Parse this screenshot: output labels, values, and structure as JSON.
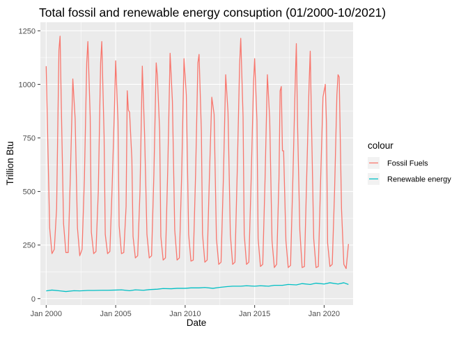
{
  "chart_data": {
    "type": "line",
    "title": "Total fossil and renewable energy consuption (01/2000-10/2021)",
    "xlabel": "Date",
    "ylabel": "Trillion Btu",
    "x_axis": {
      "type": "date",
      "range": [
        "1999-08-01",
        "2022-02-01"
      ],
      "tick_labels": [
        "Jan 2000",
        "Jan 2005",
        "Jan 2010",
        "Jan 2015",
        "Jan 2020"
      ],
      "tick_values": [
        2000,
        2005,
        2010,
        2015,
        2020
      ]
    },
    "y_axis": {
      "range": [
        -30,
        1290
      ],
      "tick_labels": [
        "0",
        "250",
        "500",
        "750",
        "1000",
        "1250"
      ],
      "tick_values": [
        0,
        250,
        500,
        750,
        1000,
        1250
      ]
    },
    "grid": true,
    "legend": {
      "title": "colour",
      "position": "right"
    },
    "series": [
      {
        "name": "Fossil Fuels",
        "color": "#F8766D",
        "points": [
          [
            "2000-01",
            1085
          ],
          [
            "2000-04",
            330
          ],
          [
            "2000-06",
            210
          ],
          [
            "2000-08",
            230
          ],
          [
            "2000-10",
            420
          ],
          [
            "2000-12",
            1160
          ],
          [
            "2001-01",
            1225
          ],
          [
            "2001-02",
            920
          ],
          [
            "2001-04",
            350
          ],
          [
            "2001-06",
            215
          ],
          [
            "2001-08",
            215
          ],
          [
            "2001-10",
            600
          ],
          [
            "2001-12",
            1025
          ],
          [
            "2002-02",
            840
          ],
          [
            "2002-04",
            330
          ],
          [
            "2002-06",
            200
          ],
          [
            "2002-08",
            230
          ],
          [
            "2002-10",
            560
          ],
          [
            "2002-12",
            1100
          ],
          [
            "2003-01",
            1200
          ],
          [
            "2003-03",
            850
          ],
          [
            "2003-04",
            310
          ],
          [
            "2003-06",
            210
          ],
          [
            "2003-08",
            220
          ],
          [
            "2003-10",
            500
          ],
          [
            "2003-12",
            1100
          ],
          [
            "2004-01",
            1200
          ],
          [
            "2004-03",
            760
          ],
          [
            "2004-04",
            300
          ],
          [
            "2004-06",
            210
          ],
          [
            "2004-08",
            220
          ],
          [
            "2004-10",
            530
          ],
          [
            "2004-12",
            900
          ],
          [
            "2005-01",
            1110
          ],
          [
            "2005-03",
            830
          ],
          [
            "2005-04",
            340
          ],
          [
            "2005-06",
            210
          ],
          [
            "2005-08",
            215
          ],
          [
            "2005-10",
            430
          ],
          [
            "2005-11",
            970
          ],
          [
            "2005-12",
            880
          ],
          [
            "2006-01",
            870
          ],
          [
            "2006-03",
            650
          ],
          [
            "2006-04",
            290
          ],
          [
            "2006-06",
            190
          ],
          [
            "2006-08",
            200
          ],
          [
            "2006-10",
            500
          ],
          [
            "2006-12",
            1085
          ],
          [
            "2007-02",
            760
          ],
          [
            "2007-04",
            300
          ],
          [
            "2007-06",
            190
          ],
          [
            "2007-08",
            200
          ],
          [
            "2007-10",
            580
          ],
          [
            "2007-12",
            1100
          ],
          [
            "2008-01",
            1040
          ],
          [
            "2008-03",
            780
          ],
          [
            "2008-04",
            290
          ],
          [
            "2008-06",
            180
          ],
          [
            "2008-08",
            190
          ],
          [
            "2008-10",
            610
          ],
          [
            "2008-12",
            1145
          ],
          [
            "2009-02",
            920
          ],
          [
            "2009-04",
            320
          ],
          [
            "2009-06",
            180
          ],
          [
            "2009-08",
            190
          ],
          [
            "2009-10",
            580
          ],
          [
            "2009-12",
            1120
          ],
          [
            "2010-02",
            950
          ],
          [
            "2010-04",
            300
          ],
          [
            "2010-06",
            175
          ],
          [
            "2010-08",
            180
          ],
          [
            "2010-10",
            580
          ],
          [
            "2010-12",
            1100
          ],
          [
            "2011-01",
            1140
          ],
          [
            "2011-03",
            780
          ],
          [
            "2011-04",
            300
          ],
          [
            "2011-06",
            170
          ],
          [
            "2011-08",
            180
          ],
          [
            "2011-10",
            580
          ],
          [
            "2011-12",
            940
          ],
          [
            "2012-02",
            860
          ],
          [
            "2012-04",
            280
          ],
          [
            "2012-06",
            160
          ],
          [
            "2012-08",
            170
          ],
          [
            "2012-10",
            560
          ],
          [
            "2012-12",
            1045
          ],
          [
            "2013-02",
            870
          ],
          [
            "2013-04",
            300
          ],
          [
            "2013-06",
            160
          ],
          [
            "2013-08",
            170
          ],
          [
            "2013-10",
            600
          ],
          [
            "2013-12",
            1090
          ],
          [
            "2014-01",
            1215
          ],
          [
            "2014-03",
            850
          ],
          [
            "2014-04",
            300
          ],
          [
            "2014-06",
            160
          ],
          [
            "2014-08",
            170
          ],
          [
            "2014-10",
            560
          ],
          [
            "2014-12",
            1000
          ],
          [
            "2015-01",
            1120
          ],
          [
            "2015-03",
            830
          ],
          [
            "2015-04",
            280
          ],
          [
            "2015-06",
            150
          ],
          [
            "2015-08",
            160
          ],
          [
            "2015-10",
            560
          ],
          [
            "2015-12",
            1045
          ],
          [
            "2016-02",
            840
          ],
          [
            "2016-04",
            270
          ],
          [
            "2016-06",
            145
          ],
          [
            "2016-08",
            160
          ],
          [
            "2016-10",
            560
          ],
          [
            "2016-11",
            970
          ],
          [
            "2016-12",
            990
          ],
          [
            "2017-01",
            690
          ],
          [
            "2017-02",
            690
          ],
          [
            "2017-04",
            270
          ],
          [
            "2017-06",
            145
          ],
          [
            "2017-08",
            155
          ],
          [
            "2017-10",
            560
          ],
          [
            "2017-12",
            1000
          ],
          [
            "2018-01",
            1190
          ],
          [
            "2018-02",
            830
          ],
          [
            "2018-04",
            320
          ],
          [
            "2018-06",
            145
          ],
          [
            "2018-08",
            150
          ],
          [
            "2018-10",
            580
          ],
          [
            "2018-12",
            1000
          ],
          [
            "2019-01",
            1155
          ],
          [
            "2019-02",
            850
          ],
          [
            "2019-04",
            280
          ],
          [
            "2019-06",
            145
          ],
          [
            "2019-08",
            150
          ],
          [
            "2019-10",
            560
          ],
          [
            "2019-12",
            940
          ],
          [
            "2020-02",
            1000
          ],
          [
            "2020-03",
            820
          ],
          [
            "2020-04",
            260
          ],
          [
            "2020-06",
            150
          ],
          [
            "2020-08",
            160
          ],
          [
            "2020-10",
            500
          ],
          [
            "2020-12",
            950
          ],
          [
            "2021-01",
            1045
          ],
          [
            "2021-02",
            1035
          ],
          [
            "2021-04",
            420
          ],
          [
            "2021-06",
            160
          ],
          [
            "2021-08",
            140
          ],
          [
            "2021-10",
            255
          ]
        ]
      },
      {
        "name": "Renewable energy",
        "color": "#00BFC4",
        "points": [
          [
            "2000-01",
            36
          ],
          [
            "2000-06",
            40
          ],
          [
            "2001-01",
            36
          ],
          [
            "2001-06",
            33
          ],
          [
            "2002-01",
            37
          ],
          [
            "2002-06",
            36
          ],
          [
            "2003-01",
            38
          ],
          [
            "2003-06",
            38
          ],
          [
            "2004-01",
            39
          ],
          [
            "2004-06",
            39
          ],
          [
            "2005-01",
            40
          ],
          [
            "2005-06",
            41
          ],
          [
            "2006-01",
            37
          ],
          [
            "2006-06",
            41
          ],
          [
            "2007-01",
            39
          ],
          [
            "2007-06",
            42
          ],
          [
            "2008-01",
            44
          ],
          [
            "2008-06",
            47
          ],
          [
            "2009-01",
            46
          ],
          [
            "2009-06",
            48
          ],
          [
            "2010-01",
            48
          ],
          [
            "2010-06",
            50
          ],
          [
            "2011-01",
            50
          ],
          [
            "2011-06",
            52
          ],
          [
            "2012-01",
            48
          ],
          [
            "2012-06",
            52
          ],
          [
            "2013-01",
            56
          ],
          [
            "2013-06",
            58
          ],
          [
            "2014-01",
            58
          ],
          [
            "2014-06",
            60
          ],
          [
            "2015-01",
            58
          ],
          [
            "2015-06",
            60
          ],
          [
            "2016-01",
            58
          ],
          [
            "2016-06",
            62
          ],
          [
            "2017-01",
            62
          ],
          [
            "2017-06",
            66
          ],
          [
            "2018-01",
            64
          ],
          [
            "2018-06",
            70
          ],
          [
            "2019-01",
            66
          ],
          [
            "2019-06",
            72
          ],
          [
            "2020-01",
            68
          ],
          [
            "2020-06",
            74
          ],
          [
            "2021-01",
            68
          ],
          [
            "2021-06",
            74
          ],
          [
            "2021-10",
            66
          ]
        ]
      }
    ]
  }
}
